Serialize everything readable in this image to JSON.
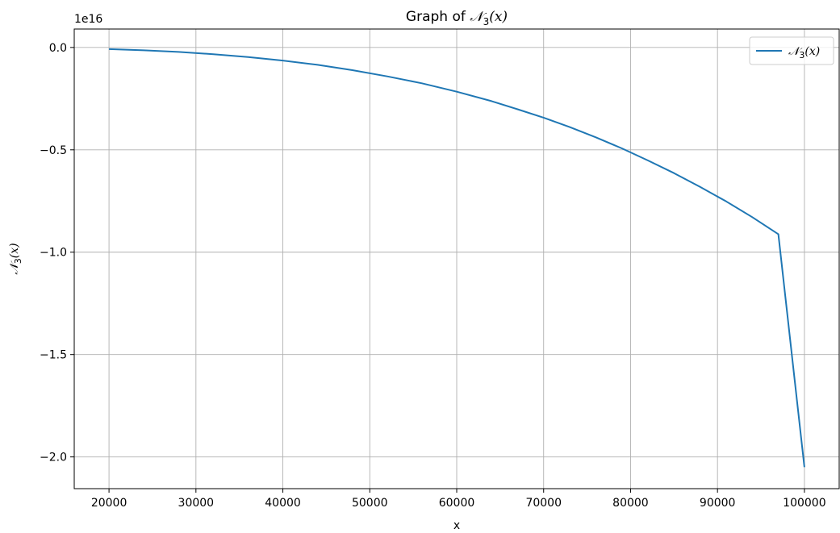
{
  "chart_data": {
    "type": "line",
    "title": {
      "prefix": "Graph of ",
      "math": "𝒩",
      "sub": "3",
      "args": "(x)"
    },
    "xlabel": "x",
    "ylabel": {
      "math": "𝒩",
      "sub": "3",
      "args": "(x)"
    },
    "offset_label": "1e16",
    "xlim": [
      16000,
      104000
    ],
    "ylim": [
      -2.155,
      0.09
    ],
    "x_ticks": [
      20000,
      30000,
      40000,
      50000,
      60000,
      70000,
      80000,
      90000,
      100000
    ],
    "x_tick_labels": [
      "20000",
      "30000",
      "40000",
      "50000",
      "60000",
      "70000",
      "80000",
      "90000",
      "100000"
    ],
    "y_ticks": [
      0.0,
      -0.5,
      -1.0,
      -1.5,
      -2.0
    ],
    "y_tick_labels": [
      "0.0",
      "−0.5",
      "−1.0",
      "−1.5",
      "−2.0"
    ],
    "grid": true,
    "legend": {
      "position": "top-right",
      "entries": [
        {
          "math": "𝒩",
          "sub": "3",
          "args": "(x)"
        }
      ]
    },
    "series": [
      {
        "color": "#1f77b4",
        "x": [
          20000,
          24000,
          28000,
          32000,
          36000,
          40000,
          44000,
          48000,
          52000,
          56000,
          60000,
          64000,
          67000,
          70000,
          73000,
          76000,
          79000,
          82000,
          85000,
          88000,
          91000,
          94000,
          97000,
          100000
        ],
        "y": [
          -0.008,
          -0.014,
          -0.022,
          -0.033,
          -0.047,
          -0.064,
          -0.085,
          -0.111,
          -0.141,
          -0.175,
          -0.216,
          -0.262,
          -0.302,
          -0.343,
          -0.389,
          -0.439,
          -0.493,
          -0.552,
          -0.614,
          -0.681,
          -0.752,
          -0.829,
          -0.912,
          -2.05
        ]
      }
    ]
  }
}
